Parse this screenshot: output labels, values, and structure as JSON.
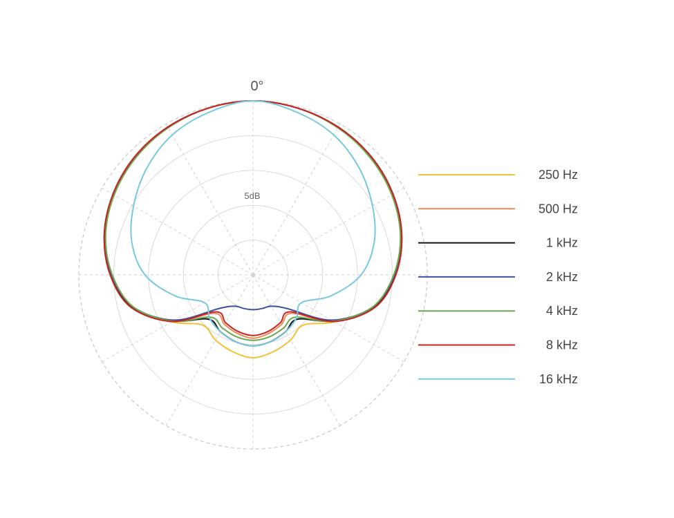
{
  "chart_data": {
    "type": "polar",
    "angle_label": "0°",
    "scale_label": "5dB",
    "angle_unit": "deg",
    "radial_unit": "dB",
    "r_range": [
      -25,
      0
    ],
    "grid": true,
    "legend_position": "right",
    "angles": [
      0,
      15,
      30,
      45,
      60,
      75,
      90,
      105,
      120,
      135,
      150,
      165,
      180,
      195,
      210,
      225,
      240,
      255,
      270,
      285,
      300,
      315,
      330,
      345
    ],
    "series": [
      {
        "name": "250 Hz",
        "color": "#f1c232",
        "values": [
          0,
          -0.2,
          -0.6,
          -1.2,
          -2.0,
          -3.1,
          -4.8,
          -7.2,
          -11.5,
          -14.8,
          -14.2,
          -13.6,
          -13.1,
          -13.6,
          -14.2,
          -14.8,
          -11.5,
          -7.2,
          -4.8,
          -3.1,
          -2.0,
          -1.2,
          -0.6,
          -0.2
        ]
      },
      {
        "name": "500 Hz",
        "color": "#f28a57",
        "values": [
          0,
          -0.2,
          -0.6,
          -1.1,
          -1.9,
          -3.0,
          -4.7,
          -7.1,
          -11.7,
          -17.2,
          -16.8,
          -16.3,
          -15.9,
          -16.3,
          -16.8,
          -17.2,
          -11.7,
          -7.1,
          -4.7,
          -3.0,
          -1.9,
          -1.1,
          -0.6,
          -0.2
        ]
      },
      {
        "name": "1 kHz",
        "color": "#111111",
        "values": [
          0,
          -0.2,
          -0.5,
          -1.0,
          -1.8,
          -2.9,
          -4.6,
          -7.0,
          -11.8,
          -16.0,
          -15.6,
          -15.1,
          -14.8,
          -15.1,
          -15.6,
          -16.0,
          -11.8,
          -7.0,
          -4.6,
          -2.9,
          -1.8,
          -1.0,
          -0.5,
          -0.2
        ]
      },
      {
        "name": "2 kHz",
        "color": "#3e4fa0",
        "values": [
          0,
          -0.2,
          -0.6,
          -1.1,
          -1.9,
          -3.0,
          -4.7,
          -7.2,
          -12.0,
          -18.2,
          -19.8,
          -20.0,
          -20.0,
          -20.0,
          -19.8,
          -18.2,
          -12.0,
          -7.2,
          -4.7,
          -3.0,
          -1.9,
          -1.1,
          -0.6,
          -0.2
        ]
      },
      {
        "name": "4 kHz",
        "color": "#6aa84f",
        "values": [
          0,
          -0.2,
          -0.6,
          -1.2,
          -2.0,
          -3.1,
          -4.8,
          -7.2,
          -11.7,
          -16.4,
          -16.2,
          -15.8,
          -15.6,
          -15.8,
          -16.2,
          -16.4,
          -11.7,
          -7.2,
          -4.8,
          -3.1,
          -2.0,
          -1.2,
          -0.6,
          -0.2
        ]
      },
      {
        "name": "8 kHz",
        "color": "#cc2222",
        "values": [
          0,
          -0.2,
          -0.5,
          -1.0,
          -1.8,
          -2.9,
          -4.5,
          -6.9,
          -11.6,
          -17.5,
          -17.1,
          -16.6,
          -16.3,
          -16.6,
          -17.1,
          -17.5,
          -11.6,
          -6.9,
          -4.5,
          -2.9,
          -1.8,
          -1.0,
          -0.5,
          -0.2
        ]
      },
      {
        "name": "16 kHz",
        "color": "#76c8e0",
        "values": [
          0,
          -0.8,
          -1.8,
          -3.4,
          -5.2,
          -7.0,
          -9.5,
          -13.4,
          -17.0,
          -16.2,
          -15.6,
          -15.1,
          -14.8,
          -15.1,
          -15.6,
          -16.2,
          -17.0,
          -13.4,
          -9.5,
          -7.0,
          -5.2,
          -3.4,
          -1.8,
          -0.8
        ]
      }
    ]
  }
}
